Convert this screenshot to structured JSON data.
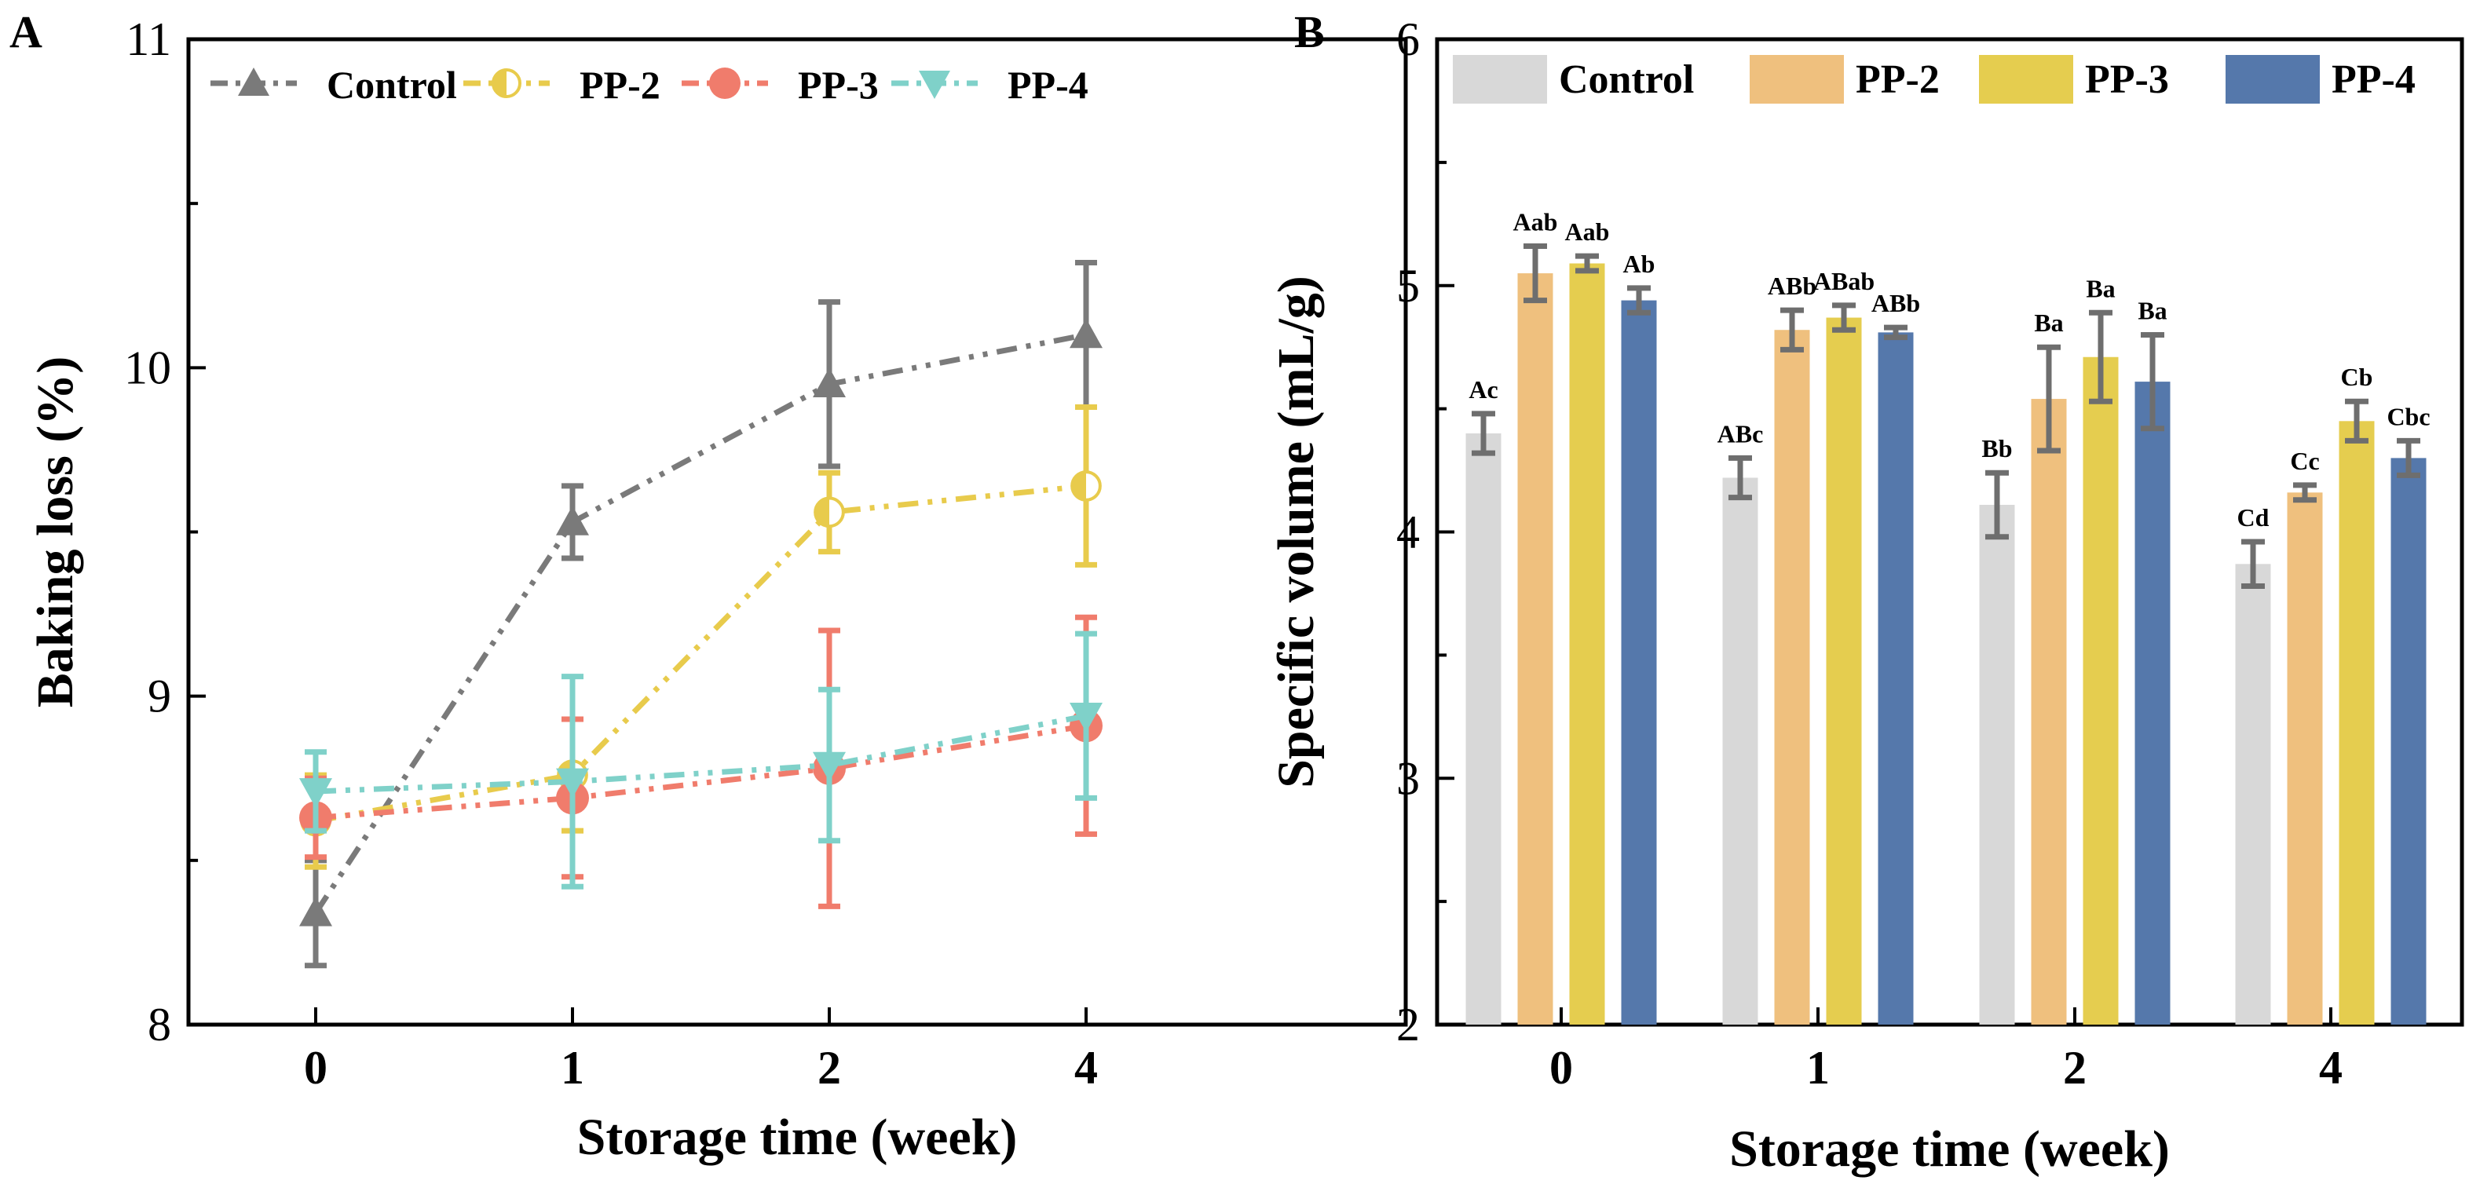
{
  "chart_data": [
    {
      "panel": "A",
      "type": "line",
      "categories": [
        "0",
        "1",
        "2",
        "4"
      ],
      "xlabel": "Storage time (week)",
      "ylabel": "Baking loss (%)",
      "ylim": [
        8,
        11
      ],
      "yticks": [
        "8",
        "9",
        "10",
        "11"
      ],
      "grid": false,
      "legend_position": "top",
      "series": [
        {
          "name": "Control",
          "color": "#7a7a7a",
          "marker": "triangle-up",
          "values": [
            8.34,
            9.53,
            9.95,
            10.1
          ],
          "errors": [
            0.16,
            0.11,
            0.25,
            0.22
          ]
        },
        {
          "name": "PP-2",
          "color": "#e8cb4c",
          "marker": "half-circle",
          "values": [
            8.62,
            8.76,
            9.56,
            9.64
          ],
          "errors": [
            0.14,
            0.17,
            0.12,
            0.24
          ]
        },
        {
          "name": "PP-3",
          "color": "#f07c6c",
          "marker": "circle",
          "values": [
            8.63,
            8.69,
            8.78,
            8.91
          ],
          "errors": [
            0.12,
            0.24,
            0.42,
            0.33
          ]
        },
        {
          "name": "PP-4",
          "color": "#7fd1c9",
          "marker": "triangle-down",
          "values": [
            8.71,
            8.74,
            8.79,
            8.94
          ],
          "errors": [
            0.12,
            0.32,
            0.23,
            0.25
          ]
        }
      ]
    },
    {
      "panel": "B",
      "type": "bar",
      "categories": [
        "0",
        "1",
        "2",
        "4"
      ],
      "xlabel": "Storage time (week)",
      "ylabel": "Specific volume (mL/g)",
      "ylim": [
        2,
        6
      ],
      "yticks": [
        "2",
        "3",
        "4",
        "5",
        "6"
      ],
      "grid": false,
      "legend_position": "top",
      "series": [
        {
          "name": "Control",
          "color": "#d8d8d8",
          "values": [
            4.4,
            4.22,
            4.11,
            3.87
          ],
          "errors": [
            0.08,
            0.08,
            0.13,
            0.09
          ],
          "labels": [
            "Ac",
            "ABc",
            "Bb",
            "Cd"
          ]
        },
        {
          "name": "PP-2",
          "color": "#efc07e",
          "values": [
            5.05,
            4.82,
            4.54,
            4.16
          ],
          "errors": [
            0.11,
            0.08,
            0.21,
            0.03
          ],
          "labels": [
            "Aab",
            "ABb",
            "Ba",
            "Cc"
          ]
        },
        {
          "name": "PP-3",
          "color": "#e5cd4f",
          "values": [
            5.09,
            4.87,
            4.71,
            4.45
          ],
          "errors": [
            0.03,
            0.05,
            0.18,
            0.08
          ],
          "labels": [
            "Aab",
            "ABab",
            "Ba",
            "Cb"
          ]
        },
        {
          "name": "PP-4",
          "color": "#5578ab",
          "values": [
            4.94,
            4.81,
            4.61,
            4.3
          ],
          "errors": [
            0.05,
            0.02,
            0.19,
            0.07
          ],
          "labels": [
            "Ab",
            "ABb",
            "Ba",
            "Cbc"
          ]
        }
      ]
    }
  ]
}
